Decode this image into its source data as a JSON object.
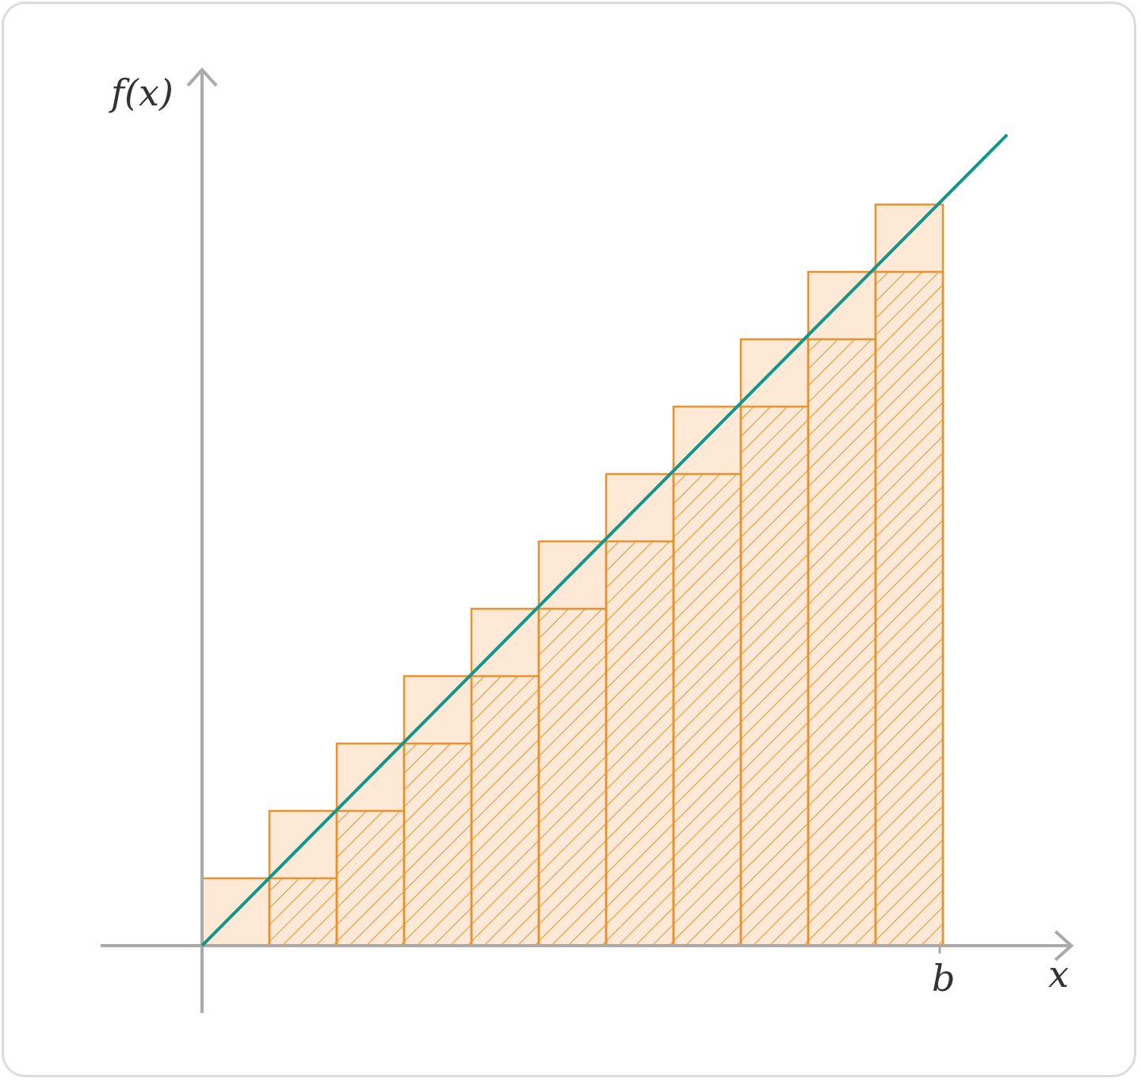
{
  "diagram": {
    "y_axis_label": "f(x)",
    "x_axis_label": "x",
    "b_label": "b",
    "function": "f(x) = x",
    "interval": [
      0,
      1
    ],
    "num_rectangles": 11,
    "upper_sum_style": "light-orange filled",
    "lower_sum_style": "orange diagonal hatching"
  },
  "colors": {
    "axis": "#aaaaaa",
    "line": "#12968c",
    "rect_stroke": "#e8922f",
    "rect_fill": "#fde9d5",
    "hatch": "#e8922f",
    "border": "#dcdcdc",
    "text": "#333333"
  }
}
